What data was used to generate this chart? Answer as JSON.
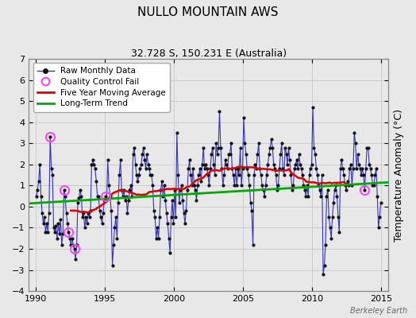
{
  "title": "NULLO MOUNTAIN AWS",
  "subtitle": "32.728 S, 150.231 E (Australia)",
  "ylabel": "Temperature Anomaly (°C)",
  "watermark": "Berkeley Earth",
  "xlim": [
    1989.5,
    2015.5
  ],
  "ylim": [
    -4,
    7
  ],
  "yticks": [
    -4,
    -3,
    -2,
    -1,
    0,
    1,
    2,
    3,
    4,
    5,
    6,
    7
  ],
  "xticks": [
    1990,
    1995,
    2000,
    2005,
    2010,
    2015
  ],
  "bg_color": "#e8e8e8",
  "plot_bg_color": "#e8e8e8",
  "raw_line_color": "#3333bb",
  "raw_dot_color": "#111111",
  "ma_color": "#dd0000",
  "trend_color": "#00aa00",
  "qc_color": "#ff44ff",
  "legend_labels": [
    "Raw Monthly Data",
    "Quality Control Fail",
    "Five Year Moving Average",
    "Long-Term Trend"
  ],
  "raw_data_times": [
    1990.042,
    1990.125,
    1990.208,
    1990.292,
    1990.375,
    1990.458,
    1990.542,
    1990.625,
    1990.708,
    1990.792,
    1990.875,
    1990.958,
    1991.042,
    1991.125,
    1991.208,
    1991.292,
    1991.375,
    1991.458,
    1991.542,
    1991.625,
    1991.708,
    1991.792,
    1991.875,
    1991.958,
    1992.042,
    1992.125,
    1992.208,
    1992.292,
    1992.375,
    1992.458,
    1992.542,
    1992.625,
    1992.708,
    1992.792,
    1992.875,
    1992.958,
    1993.042,
    1993.125,
    1993.208,
    1993.292,
    1993.375,
    1993.458,
    1993.542,
    1993.625,
    1993.708,
    1993.792,
    1993.875,
    1993.958,
    1994.042,
    1994.125,
    1994.208,
    1994.292,
    1994.375,
    1994.458,
    1994.542,
    1994.625,
    1994.708,
    1994.792,
    1994.875,
    1994.958,
    1995.042,
    1995.125,
    1995.208,
    1995.292,
    1995.375,
    1995.458,
    1995.542,
    1995.625,
    1995.708,
    1995.792,
    1995.875,
    1995.958,
    1996.042,
    1996.125,
    1996.208,
    1996.292,
    1996.375,
    1996.458,
    1996.542,
    1996.625,
    1996.708,
    1996.792,
    1996.875,
    1996.958,
    1997.042,
    1997.125,
    1997.208,
    1997.292,
    1997.375,
    1997.458,
    1997.542,
    1997.625,
    1997.708,
    1997.792,
    1997.875,
    1997.958,
    1998.042,
    1998.125,
    1998.208,
    1998.292,
    1998.375,
    1998.458,
    1998.542,
    1998.625,
    1998.708,
    1998.792,
    1998.875,
    1998.958,
    1999.042,
    1999.125,
    1999.208,
    1999.292,
    1999.375,
    1999.458,
    1999.542,
    1999.625,
    1999.708,
    1999.792,
    1999.875,
    1999.958,
    2000.042,
    2000.125,
    2000.208,
    2000.292,
    2000.375,
    2000.458,
    2000.542,
    2000.625,
    2000.708,
    2000.792,
    2000.875,
    2000.958,
    2001.042,
    2001.125,
    2001.208,
    2001.292,
    2001.375,
    2001.458,
    2001.542,
    2001.625,
    2001.708,
    2001.792,
    2001.875,
    2001.958,
    2002.042,
    2002.125,
    2002.208,
    2002.292,
    2002.375,
    2002.458,
    2002.542,
    2002.625,
    2002.708,
    2002.792,
    2002.875,
    2002.958,
    2003.042,
    2003.125,
    2003.208,
    2003.292,
    2003.375,
    2003.458,
    2003.542,
    2003.625,
    2003.708,
    2003.792,
    2003.875,
    2003.958,
    2004.042,
    2004.125,
    2004.208,
    2004.292,
    2004.375,
    2004.458,
    2004.542,
    2004.625,
    2004.708,
    2004.792,
    2004.875,
    2004.958,
    2005.042,
    2005.125,
    2005.208,
    2005.292,
    2005.375,
    2005.458,
    2005.542,
    2005.625,
    2005.708,
    2005.792,
    2005.875,
    2005.958,
    2006.042,
    2006.125,
    2006.208,
    2006.292,
    2006.375,
    2006.458,
    2006.542,
    2006.625,
    2006.708,
    2006.792,
    2006.875,
    2006.958,
    2007.042,
    2007.125,
    2007.208,
    2007.292,
    2007.375,
    2007.458,
    2007.542,
    2007.625,
    2007.708,
    2007.792,
    2007.875,
    2007.958,
    2008.042,
    2008.125,
    2008.208,
    2008.292,
    2008.375,
    2008.458,
    2008.542,
    2008.625,
    2008.708,
    2008.792,
    2008.875,
    2008.958,
    2009.042,
    2009.125,
    2009.208,
    2009.292,
    2009.375,
    2009.458,
    2009.542,
    2009.625,
    2009.708,
    2009.792,
    2009.875,
    2009.958,
    2010.042,
    2010.125,
    2010.208,
    2010.292,
    2010.375,
    2010.458,
    2010.542,
    2010.625,
    2010.708,
    2010.792,
    2010.875,
    2010.958,
    2011.042,
    2011.125,
    2011.208,
    2011.292,
    2011.375,
    2011.458,
    2011.542,
    2011.625,
    2011.708,
    2011.792,
    2011.875,
    2011.958,
    2012.042,
    2012.125,
    2012.208,
    2012.292,
    2012.375,
    2012.458,
    2012.542,
    2012.625,
    2012.708,
    2012.792,
    2012.875,
    2012.958,
    2013.042,
    2013.125,
    2013.208,
    2013.292,
    2013.375,
    2013.458,
    2013.542,
    2013.625,
    2013.708,
    2013.792,
    2013.875,
    2013.958,
    2014.042,
    2014.125,
    2014.208,
    2014.292,
    2014.375,
    2014.458,
    2014.542,
    2014.625,
    2014.708,
    2014.792,
    2014.875,
    2014.958
  ],
  "raw_data_values": [
    0.5,
    0.8,
    1.2,
    2.0,
    0.5,
    -0.3,
    -0.8,
    -0.5,
    -1.2,
    -0.8,
    -1.2,
    -0.3,
    3.3,
    1.8,
    1.5,
    -1.0,
    -1.2,
    -0.9,
    -1.5,
    -0.8,
    -1.3,
    -0.6,
    -1.8,
    -1.3,
    0.8,
    0.5,
    -0.3,
    -0.8,
    -1.2,
    -1.5,
    -1.8,
    -1.5,
    -1.8,
    -2.0,
    -2.5,
    -1.8,
    0.2,
    0.4,
    0.8,
    0.5,
    -0.5,
    -0.3,
    -1.0,
    -0.5,
    -0.8,
    -0.3,
    -0.5,
    -0.2,
    2.0,
    2.2,
    2.0,
    1.8,
    1.2,
    0.5,
    0.5,
    -0.2,
    -0.5,
    -0.8,
    -0.3,
    0.3,
    0.5,
    0.3,
    2.2,
    1.0,
    0.5,
    -0.2,
    -2.8,
    -1.8,
    -1.0,
    -0.5,
    -1.5,
    0.2,
    1.5,
    2.2,
    0.8,
    0.5,
    0.8,
    0.3,
    0.5,
    -0.3,
    0.3,
    0.8,
    1.0,
    0.5,
    2.5,
    2.8,
    2.0,
    1.5,
    1.2,
    1.5,
    1.8,
    2.0,
    2.5,
    2.8,
    2.2,
    1.8,
    2.5,
    2.0,
    1.8,
    1.5,
    1.5,
    1.0,
    -0.2,
    -0.5,
    -1.5,
    -1.0,
    -1.5,
    -0.5,
    0.8,
    1.2,
    0.5,
    1.0,
    0.3,
    -0.3,
    -0.8,
    -1.5,
    -2.2,
    -0.5,
    0.3,
    -0.8,
    0.8,
    -0.5,
    3.5,
    1.5,
    0.2,
    0.8,
    1.0,
    0.3,
    -0.3,
    -0.8,
    -0.2,
    0.8,
    1.8,
    2.2,
    1.5,
    1.0,
    1.8,
    1.0,
    0.8,
    0.3,
    1.0,
    1.5,
    1.8,
    1.2,
    2.0,
    2.8,
    1.8,
    2.0,
    1.8,
    1.5,
    1.0,
    1.8,
    2.5,
    2.8,
    2.0,
    1.5,
    3.0,
    2.5,
    2.8,
    4.5,
    2.8,
    1.8,
    1.0,
    1.5,
    2.2,
    2.0,
    1.8,
    2.5,
    2.5,
    3.0,
    1.8,
    1.5,
    1.0,
    1.8,
    1.0,
    1.8,
    1.5,
    2.8,
    1.0,
    1.8,
    4.2,
    3.0,
    2.5,
    1.8,
    1.5,
    1.0,
    0.2,
    -0.2,
    -1.8,
    1.5,
    2.0,
    1.8,
    2.5,
    3.0,
    1.8,
    1.5,
    1.0,
    0.8,
    0.5,
    1.0,
    1.5,
    2.0,
    2.5,
    2.8,
    3.2,
    2.8,
    2.0,
    1.8,
    1.5,
    0.8,
    1.0,
    1.8,
    2.5,
    3.0,
    1.8,
    1.5,
    2.8,
    2.5,
    2.0,
    2.8,
    2.2,
    1.5,
    0.8,
    1.0,
    1.8,
    2.0,
    2.2,
    1.8,
    2.5,
    2.0,
    1.8,
    1.5,
    1.0,
    0.8,
    0.5,
    1.0,
    0.5,
    1.5,
    1.8,
    2.0,
    4.7,
    2.8,
    2.5,
    1.8,
    1.5,
    1.0,
    0.8,
    0.5,
    1.5,
    -3.2,
    -2.8,
    -1.8,
    0.5,
    0.8,
    -0.5,
    -1.0,
    -1.5,
    -0.5,
    0.2,
    0.8,
    1.0,
    0.5,
    -0.5,
    -1.2,
    1.8,
    2.2,
    1.8,
    1.5,
    1.0,
    0.8,
    1.2,
    1.0,
    1.8,
    2.0,
    1.0,
    1.8,
    3.5,
    3.0,
    1.8,
    2.5,
    2.0,
    1.8,
    1.5,
    1.8,
    1.5,
    0.8,
    1.8,
    2.8,
    2.8,
    2.0,
    1.8,
    1.5,
    1.0,
    1.0,
    1.5,
    1.8,
    0.5,
    -1.0,
    -0.5,
    0.2
  ],
  "qc_fail_times": [
    1991.042,
    1992.042,
    1992.375,
    1992.792,
    1995.042,
    2013.792
  ],
  "qc_fail_values": [
    3.3,
    0.8,
    -1.2,
    -2.0,
    0.5,
    0.8
  ],
  "trend_x": [
    1989.5,
    2015.5
  ],
  "trend_y": [
    0.15,
    1.15
  ],
  "grid_color": "#cccccc",
  "spine_color": "#888888",
  "title_fontsize": 11,
  "subtitle_fontsize": 9,
  "tick_labelsize": 8,
  "ylabel_fontsize": 9,
  "legend_fontsize": 7.5,
  "watermark_fontsize": 7
}
